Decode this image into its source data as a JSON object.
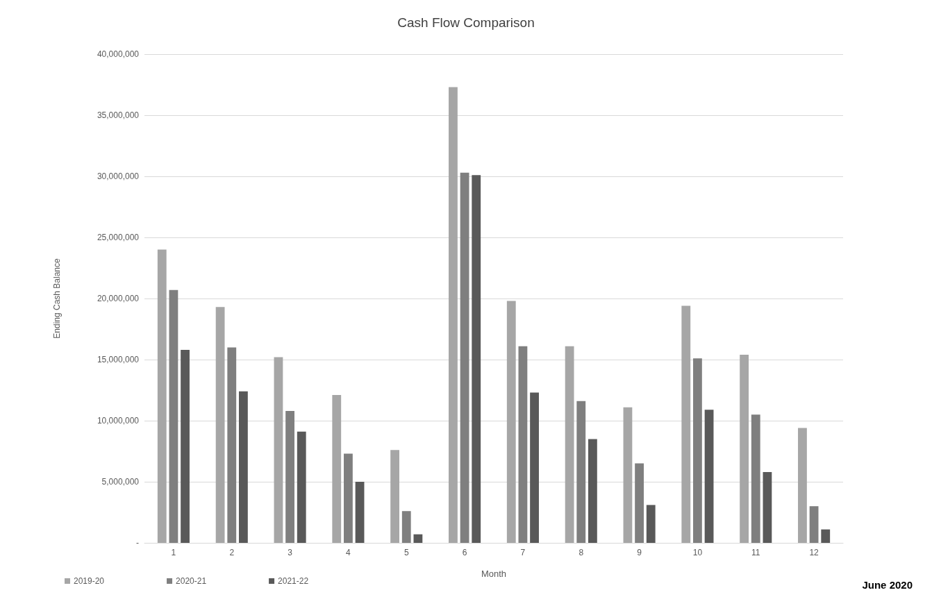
{
  "chart_data": {
    "type": "bar",
    "title": "Cash Flow Comparison",
    "xlabel": "Month",
    "ylabel": "Ending Cash Balance",
    "categories": [
      "1",
      "2",
      "3",
      "4",
      "5",
      "6",
      "7",
      "8",
      "9",
      "10",
      "11",
      "12"
    ],
    "series": [
      {
        "name": "2019-20",
        "color": "#a6a6a6",
        "values": [
          24000000,
          19300000,
          15200000,
          12100000,
          7600000,
          37300000,
          19800000,
          16100000,
          11100000,
          19400000,
          15400000,
          9400000
        ]
      },
      {
        "name": "2020-21",
        "color": "#7f7f7f",
        "values": [
          20700000,
          16000000,
          10800000,
          7300000,
          2600000,
          30300000,
          16100000,
          11600000,
          6500000,
          15100000,
          10500000,
          3000000
        ]
      },
      {
        "name": "2021-22",
        "color": "#595959",
        "values": [
          15800000,
          12400000,
          9100000,
          5000000,
          700000,
          30100000,
          12300000,
          8500000,
          3100000,
          10900000,
          5800000,
          1100000
        ]
      }
    ],
    "ylim": [
      0,
      40000000
    ],
    "yticks": [
      {
        "value": 0,
        "label": "-"
      },
      {
        "value": 5000000,
        "label": "5,000,000"
      },
      {
        "value": 10000000,
        "label": "10,000,000"
      },
      {
        "value": 15000000,
        "label": "15,000,000"
      },
      {
        "value": 20000000,
        "label": "20,000,000"
      },
      {
        "value": 25000000,
        "label": "25,000,000"
      },
      {
        "value": 30000000,
        "label": "30,000,000"
      },
      {
        "value": 35000000,
        "label": "35,000,000"
      },
      {
        "value": 40000000,
        "label": "40,000,000"
      }
    ],
    "grid": "y",
    "legend": "bottom left",
    "annotations": [
      "June 2020"
    ]
  }
}
